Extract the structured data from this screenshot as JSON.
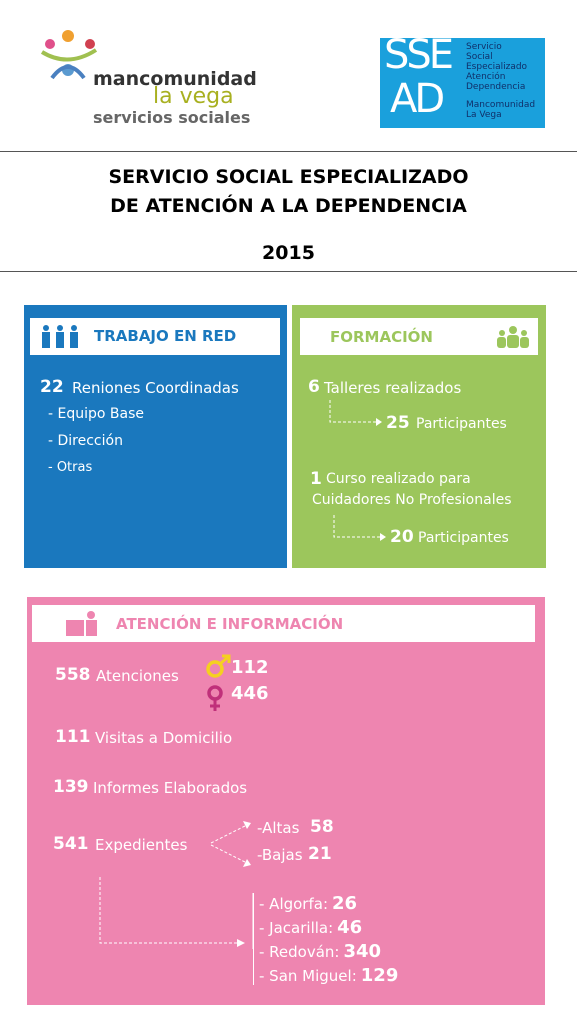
{
  "header": {
    "logo_left": {
      "line1": "mancomunidad",
      "line2": "la vega",
      "line3": "servicios sociales"
    },
    "logo_right": {
      "big_top": "SSE",
      "big_bottom": "AD",
      "lines": [
        "Servicio",
        "Social",
        "Especializado",
        "Atención",
        "Dependencia"
      ],
      "footer": [
        "Mancomunidad",
        "La Vega"
      ]
    }
  },
  "title": {
    "lines": [
      "SERVICIO SOCIAL ESPECIALIZADO",
      "DE ATENCIÓN A LA DEPENDENCIA"
    ],
    "year": 2015
  },
  "trabajo": {
    "title": "TRABAJO EN RED",
    "count": 22,
    "label": "Reniones Coordinadas",
    "items": [
      "- Equipo Base",
      "- Dirección",
      "- Otras"
    ]
  },
  "formacion": {
    "title": "FORMACIÓN",
    "talleres": {
      "count": 6,
      "label": "Talleres realizados",
      "participants": 25,
      "participants_label": "Participantes"
    },
    "curso": {
      "count": 1,
      "label_lines": [
        "Curso realizado para",
        "Cuidadores No Profesionales"
      ],
      "participants": 20,
      "participants_label": "Participantes"
    }
  },
  "atencion": {
    "title": "ATENCIÓN E INFORMACIÓN",
    "atenciones": {
      "count": 558,
      "label": "Atenciones",
      "male": 112,
      "female": 446
    },
    "visitas": {
      "count": 111,
      "label": "Visitas a Domicilio"
    },
    "informes": {
      "count": 139,
      "label": "Informes Elaborados"
    },
    "expedientes": {
      "count": 541,
      "label": "Expedientes",
      "altas": {
        "label": "-Altas",
        "value": 58
      },
      "bajas": {
        "label": "-Bajas",
        "value": 21
      }
    },
    "municipios": [
      {
        "label": "- Algorfa:",
        "value": 26
      },
      {
        "label": "- Jacarilla:",
        "value": 46
      },
      {
        "label": "- Redován:",
        "value": 340
      },
      {
        "label": "- San Miguel:",
        "value": 129
      }
    ]
  }
}
